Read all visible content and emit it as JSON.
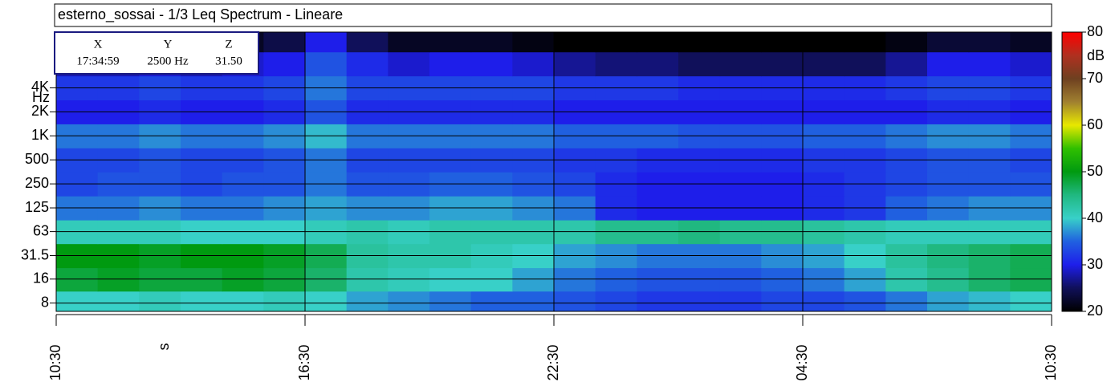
{
  "chart_data": {
    "type": "spectrogram",
    "title": "esterno_sossai - 1/3 Leq Spectrum - Lineare",
    "xlabel": "s",
    "ylabel": "Hz",
    "xlim": [
      0,
      24
    ],
    "xticks": [
      {
        "value": 0,
        "label": "10:30"
      },
      {
        "value": 6,
        "label": "16:30"
      },
      {
        "value": 12,
        "label": "22:30"
      },
      {
        "value": 18,
        "label": "04:30"
      },
      {
        "value": 24,
        "label": "10:30"
      }
    ],
    "ylim": [
      6.3,
      20000
    ],
    "log_y": true,
    "yticks": [
      {
        "value": 8,
        "label": "8"
      },
      {
        "value": 16,
        "label": "16"
      },
      {
        "value": 31.5,
        "label": "31.5"
      },
      {
        "value": 63,
        "label": "63"
      },
      {
        "value": 125,
        "label": "125"
      },
      {
        "value": 250,
        "label": "250"
      },
      {
        "value": 500,
        "label": "500"
      },
      {
        "value": 1000,
        "label": "1K"
      },
      {
        "value": 2000,
        "label": "2K"
      },
      {
        "value": 4000,
        "label": "4K"
      }
    ],
    "grid": true,
    "bands": [
      8,
      16,
      31.5,
      63,
      125,
      250,
      500,
      1000,
      2000,
      4000,
      8000,
      16000
    ],
    "z": [
      [
        40,
        40,
        41,
        40,
        40,
        41,
        40,
        38,
        37,
        36,
        35,
        35,
        34,
        33,
        32,
        32,
        32,
        33,
        33,
        34,
        36,
        38,
        39,
        40
      ],
      [
        48,
        49,
        48,
        48,
        49,
        48,
        46,
        42,
        41,
        40,
        40,
        38,
        36,
        35,
        34,
        34,
        34,
        35,
        36,
        38,
        42,
        44,
        46,
        47
      ],
      [
        50,
        50,
        49,
        50,
        50,
        49,
        47,
        43,
        42,
        42,
        41,
        40,
        38,
        37,
        36,
        36,
        36,
        37,
        38,
        40,
        43,
        45,
        46,
        47
      ],
      [
        41,
        41,
        41,
        40,
        40,
        40,
        41,
        42,
        41,
        42,
        42,
        42,
        42,
        44,
        44,
        45,
        44,
        44,
        43,
        42,
        41,
        41,
        41,
        41
      ],
      [
        36,
        36,
        37,
        36,
        36,
        37,
        38,
        37,
        37,
        38,
        38,
        37,
        36,
        31,
        30,
        30,
        30,
        30,
        31,
        32,
        35,
        36,
        37,
        37
      ],
      [
        33,
        34,
        34,
        33,
        34,
        34,
        36,
        34,
        34,
        35,
        35,
        34,
        33,
        31,
        30,
        30,
        30,
        30,
        31,
        32,
        33,
        34,
        34,
        34
      ],
      [
        33,
        33,
        34,
        33,
        33,
        34,
        36,
        33,
        33,
        33,
        33,
        33,
        32,
        32,
        31,
        31,
        31,
        31,
        32,
        32,
        33,
        34,
        34,
        33
      ],
      [
        36,
        36,
        37,
        36,
        36,
        37,
        39,
        36,
        36,
        36,
        36,
        36,
        35,
        35,
        35,
        34,
        34,
        34,
        35,
        35,
        36,
        37,
        37,
        36
      ],
      [
        30,
        30,
        31,
        30,
        30,
        31,
        34,
        31,
        31,
        31,
        31,
        31,
        30,
        30,
        30,
        30,
        30,
        30,
        30,
        30,
        30,
        31,
        31,
        30
      ],
      [
        32,
        32,
        33,
        32,
        32,
        33,
        36,
        33,
        33,
        33,
        33,
        33,
        32,
        32,
        32,
        31,
        31,
        31,
        31,
        31,
        32,
        33,
        33,
        32
      ],
      [
        28,
        28,
        29,
        28,
        29,
        30,
        34,
        31,
        29,
        30,
        30,
        29,
        27,
        26,
        26,
        25,
        25,
        25,
        25,
        25,
        27,
        30,
        30,
        29
      ],
      [
        21,
        21,
        21,
        21,
        22,
        24,
        30,
        25,
        22,
        22,
        22,
        21,
        20,
        20,
        20,
        20,
        20,
        20,
        20,
        20,
        21,
        23,
        23,
        22
      ]
    ],
    "zlabel": "dB",
    "zlim": [
      20,
      80
    ],
    "zticks": [
      20,
      30,
      40,
      50,
      60,
      70,
      80
    ],
    "colors": [
      "#000000",
      "#10105a",
      "#1e1eea",
      "#2060e0",
      "#38d0c8",
      "#20b880",
      "#009a10",
      "#30c000",
      "#e8e800",
      "#a08030",
      "#6e4020",
      "#b03020",
      "#ff0000"
    ],
    "cursor": {
      "headers": [
        "X",
        "Y",
        "Z"
      ],
      "values": [
        "17:34:59",
        "2500 Hz",
        "31.50"
      ]
    }
  }
}
